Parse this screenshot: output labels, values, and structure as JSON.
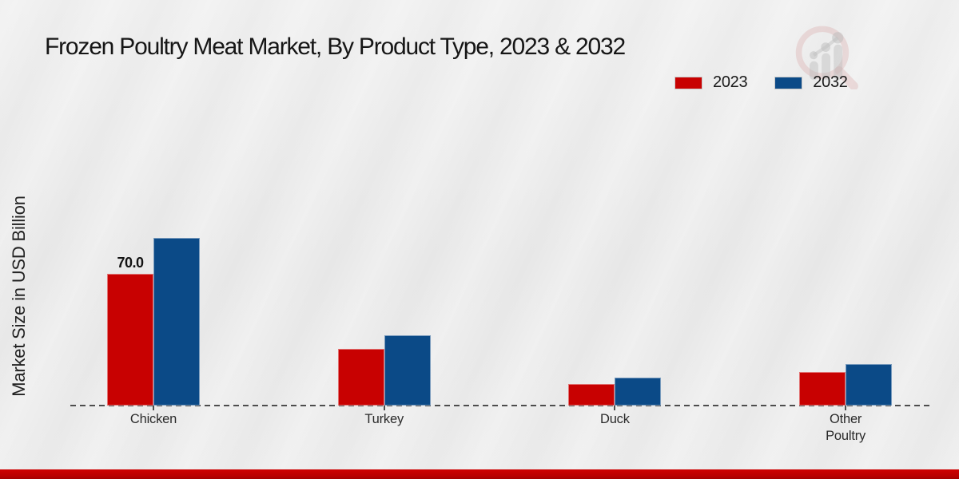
{
  "chart_data": {
    "type": "bar",
    "title": "Frozen Poultry Meat Market, By Product Type, 2023 & 2032",
    "ylabel": "Market Size in USD Billion",
    "xlabel": "",
    "categories": [
      "Chicken",
      "Turkey",
      "Duck",
      "Other Poultry"
    ],
    "series": [
      {
        "name": "2023",
        "color": "#c80101",
        "values": [
          70.0,
          30.0,
          11.5,
          18.0
        ],
        "data_labels": [
          "70.0",
          "",
          "",
          ""
        ]
      },
      {
        "name": "2032",
        "color": "#0b4a87",
        "values": [
          89.3,
          37.2,
          14.8,
          22.1
        ],
        "data_labels": [
          "",
          "",
          "",
          ""
        ]
      }
    ],
    "ylim": [
      0,
      100
    ],
    "grid": false,
    "y_axis_ticks_visible": false,
    "baseline_style": "dashed",
    "legend_position": "top-right"
  },
  "branding": {
    "logo_icon": "magnifier-bar-chart-watermark",
    "footer_color": "#b80000"
  }
}
